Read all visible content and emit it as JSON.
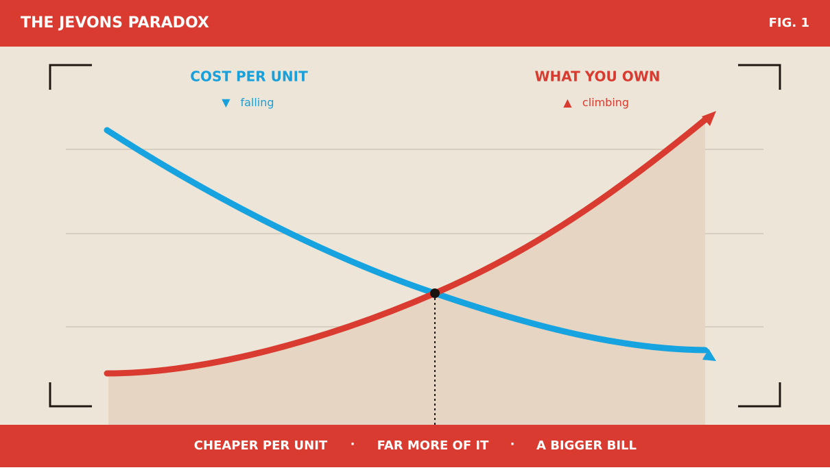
{
  "header": {
    "title": "THE JEVONS PARADOX",
    "figure": "FIG. 1"
  },
  "legend": {
    "cost": {
      "title": "COST PER UNIT",
      "marker": "▼",
      "label": "falling"
    },
    "own": {
      "title": "WHAT YOU OWN",
      "marker": "▲",
      "label": "climbing"
    }
  },
  "footer": {
    "items": [
      "CHEAPER PER UNIT",
      "FAR MORE OF IT",
      "A BIGGER BILL"
    ],
    "separator": "·"
  }
}
